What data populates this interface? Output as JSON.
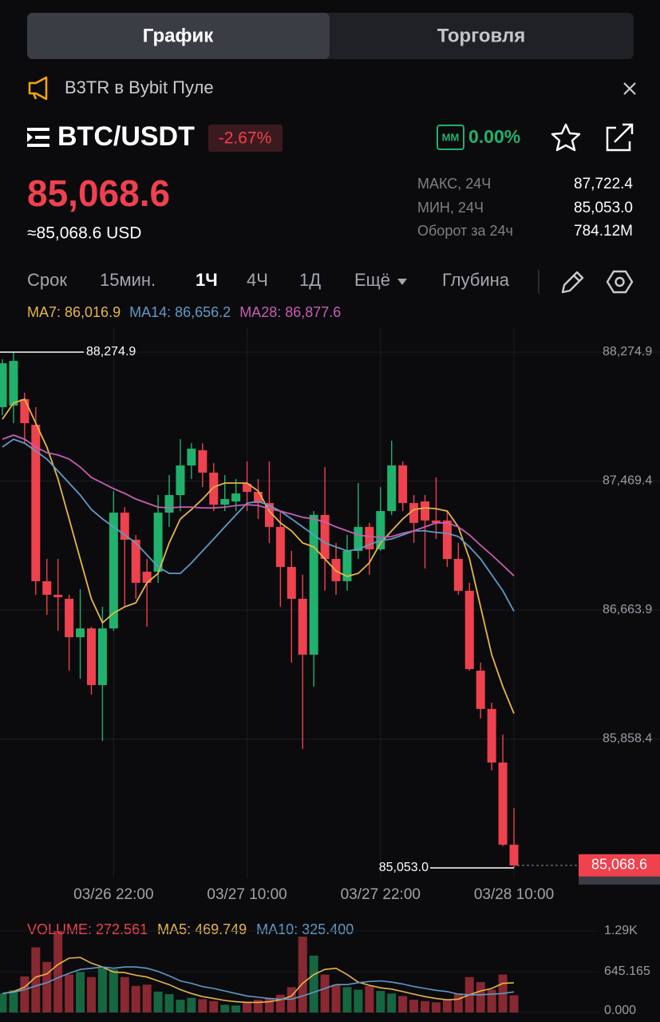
{
  "tabs": [
    "График",
    "Торговля"
  ],
  "banner": "B3TR в Bybit Пуле",
  "pair": "BTC/USDT",
  "change": "-2.67%",
  "mm_badge": "MM",
  "mm_value": "0.00%",
  "price": "85,068.6",
  "price_usd": "≈85,068.6 USD",
  "stats": [
    [
      "МАКС, 24Ч",
      "87,722.4"
    ],
    [
      "МИН, 24Ч",
      "85,053.0"
    ],
    [
      "Оборот за 24ч",
      "784.12M"
    ]
  ],
  "intervals": [
    "Срок",
    "15мин.",
    "1Ч",
    "4Ч",
    "1Д",
    "Ещё",
    "Глубина"
  ],
  "chart_data": [
    {
      "type": "candlestick",
      "up_color": "#20b26c",
      "down_color": "#f0414e",
      "grid": true,
      "categories": [
        null,
        null,
        null,
        null,
        null,
        null,
        null,
        null,
        null,
        null,
        "03/26 22:00",
        null,
        null,
        null,
        null,
        null,
        null,
        null,
        null,
        null,
        null,
        null,
        "03/27 10:00",
        null,
        null,
        null,
        null,
        null,
        null,
        null,
        null,
        null,
        null,
        null,
        "03/27 22:00",
        null,
        null,
        null,
        null,
        null,
        null,
        null,
        null,
        null,
        null,
        null,
        "03/28 10:00"
      ],
      "open": [
        87931,
        87941,
        87981,
        87821,
        86844,
        86759,
        86734,
        86494,
        86549,
        86195,
        86549,
        87272,
        87103,
        86903,
        86903,
        87272,
        87382,
        87567,
        87662,
        87522,
        87322,
        87342,
        87452,
        87402,
        87332,
        87183,
        86933,
        86734,
        86385,
        87258,
        86983,
        86844,
        87033,
        87183,
        87043,
        87282,
        87567,
        87332,
        87342,
        87223,
        87223,
        86983,
        86784,
        86285,
        86046,
        85711,
        85198
      ],
      "high": [
        88230,
        88274.9,
        88021,
        87931,
        86983,
        86983,
        86759,
        86794,
        86559,
        86684,
        87407,
        87307,
        87133,
        86983,
        87382,
        87507,
        87731,
        87706,
        87706,
        87582,
        87507,
        87482,
        87592,
        87482,
        87592,
        87282,
        87033,
        86884,
        87282,
        87557,
        87083,
        87133,
        87457,
        87208,
        87432,
        87721,
        87592,
        87382,
        87382,
        87492,
        87282,
        87083,
        86834,
        86335,
        86085,
        85886,
        85427
      ],
      "low": [
        87881,
        87831,
        87706,
        86759,
        86634,
        86534,
        86285,
        86235,
        86135,
        85846,
        86534,
        86684,
        86734,
        86559,
        86834,
        87183,
        87282,
        87482,
        87432,
        87282,
        87282,
        87282,
        87282,
        87233,
        87083,
        86684,
        86335,
        85796,
        86185,
        86784,
        86759,
        86784,
        86983,
        86884,
        87033,
        87258,
        87282,
        87083,
        86923,
        87108,
        86933,
        86759,
        86285,
        85986,
        85662,
        85188,
        85053.0
      ],
      "close": [
        88205,
        88220,
        87831,
        86844,
        86759,
        86744,
        86494,
        86549,
        86195,
        86549,
        87272,
        87103,
        86834,
        86834,
        87272,
        87382,
        87567,
        87672,
        87522,
        87322,
        87357,
        87392,
        87402,
        87332,
        87183,
        86933,
        86734,
        86385,
        87258,
        86983,
        86844,
        87033,
        87183,
        87043,
        87282,
        87567,
        87332,
        87208,
        87223,
        87208,
        86983,
        86784,
        86295,
        86046,
        85711,
        85198,
        85068.6
      ],
      "series": [
        {
          "name": "MA7",
          "legend": "MA7: 86,016.9",
          "color": "#e8b642",
          "values": [
            87856,
            87956,
            87981,
            87831,
            87682,
            87482,
            87233,
            86983,
            86734,
            86584,
            86644,
            86684,
            86709,
            86834,
            86893,
            87083,
            87233,
            87292,
            87357,
            87432,
            87457,
            87457,
            87457,
            87407,
            87282,
            87208,
            87158,
            87083,
            87058,
            86983,
            86908,
            86874,
            86893,
            86958,
            87083,
            87158,
            87233,
            87292,
            87302,
            87297,
            87282,
            87183,
            86983,
            86684,
            86385,
            86185,
            86016.9
          ]
        },
        {
          "name": "MA14",
          "legend": "MA14: 86,656.2",
          "color": "#5f9ac6",
          "values": [
            87682,
            87731,
            87706,
            87657,
            87607,
            87532,
            87457,
            87382,
            87292,
            87233,
            87183,
            87133,
            87083,
            87008,
            86933,
            86893,
            86893,
            86958,
            87033,
            87108,
            87183,
            87258,
            87332,
            87342,
            87317,
            87282,
            87233,
            87183,
            87133,
            87083,
            87058,
            87033,
            87043,
            87073,
            87098,
            87108,
            87133,
            87158,
            87158,
            87148,
            87143,
            87123,
            87058,
            86983,
            86884,
            86784,
            86656.2
          ]
        },
        {
          "name": "MA28",
          "legend": "MA28: 86,877.6",
          "color": "#c85db4",
          "values": [
            87731,
            87756,
            87731,
            87682,
            87647,
            87632,
            87607,
            87557,
            87492,
            87457,
            87422,
            87392,
            87357,
            87332,
            87307,
            87302,
            87307,
            87307,
            87302,
            87302,
            87307,
            87317,
            87322,
            87317,
            87297,
            87282,
            87263,
            87243,
            87233,
            87213,
            87183,
            87158,
            87133,
            87123,
            87118,
            87123,
            87143,
            87158,
            87183,
            87208,
            87208,
            87183,
            87133,
            87068,
            87008,
            86943,
            86877.6
          ]
        }
      ],
      "ylim": [
        85053.0,
        88274.9
      ],
      "yticks": [
        {
          "value": 88274.9,
          "label": "88,274.9"
        },
        {
          "value": 87469.4,
          "label": "87,469.4"
        },
        {
          "value": 86663.9,
          "label": "86,663.9"
        },
        {
          "value": 85858.4,
          "label": "85,858.4"
        }
      ],
      "max_marker": {
        "value": 88274.9,
        "label": "88,274.9"
      },
      "min_marker": {
        "value": 85053.0,
        "label": "85,053.0"
      },
      "last_price": {
        "value": 85068.6,
        "label": "85,068.6"
      }
    },
    {
      "type": "volume",
      "series": [
        {
          "name": "VOLUME",
          "legend": "VOLUME: 272.561",
          "color": "#f0414e",
          "values": [
            300,
            350,
            570,
            1030,
            800,
            1290,
            600,
            640,
            560,
            700,
            680,
            560,
            420,
            440,
            330,
            290,
            200,
            230,
            210,
            180,
            120,
            110,
            170,
            200,
            230,
            280,
            400,
            1200,
            900,
            600,
            440,
            400,
            360,
            420,
            340,
            300,
            260,
            200,
            180,
            160,
            200,
            300,
            560,
            480,
            360,
            600,
            272.561
          ]
        },
        {
          "name": "MA5",
          "legend": "MA5: 469.749",
          "color": "#e8b642",
          "values": [
            300,
            330,
            400,
            560,
            610,
            760,
            860,
            870,
            780,
            720,
            640,
            630,
            590,
            560,
            500,
            440,
            360,
            300,
            250,
            220,
            190,
            170,
            160,
            160,
            170,
            200,
            260,
            460,
            600,
            680,
            700,
            600,
            480,
            430,
            390,
            370,
            330,
            290,
            250,
            220,
            200,
            210,
            280,
            340,
            380,
            460,
            469.749
          ]
        },
        {
          "name": "MA10",
          "legend": "MA10: 325.400",
          "color": "#5f9ac6",
          "values": [
            300,
            320,
            360,
            420,
            470,
            550,
            620,
            680,
            700,
            720,
            700,
            720,
            720,
            700,
            650,
            580,
            500,
            460,
            410,
            380,
            340,
            300,
            260,
            240,
            220,
            210,
            210,
            260,
            320,
            380,
            440,
            440,
            470,
            490,
            500,
            480,
            450,
            410,
            380,
            350,
            330,
            290,
            280,
            280,
            290,
            300,
            325.4
          ]
        }
      ],
      "ylim": [
        0,
        1290.33
      ],
      "yticks": [
        {
          "value": 1290.33,
          "label": "1.29K"
        },
        645.165,
        {
          "value": 0,
          "label": "0.000"
        }
      ]
    }
  ]
}
